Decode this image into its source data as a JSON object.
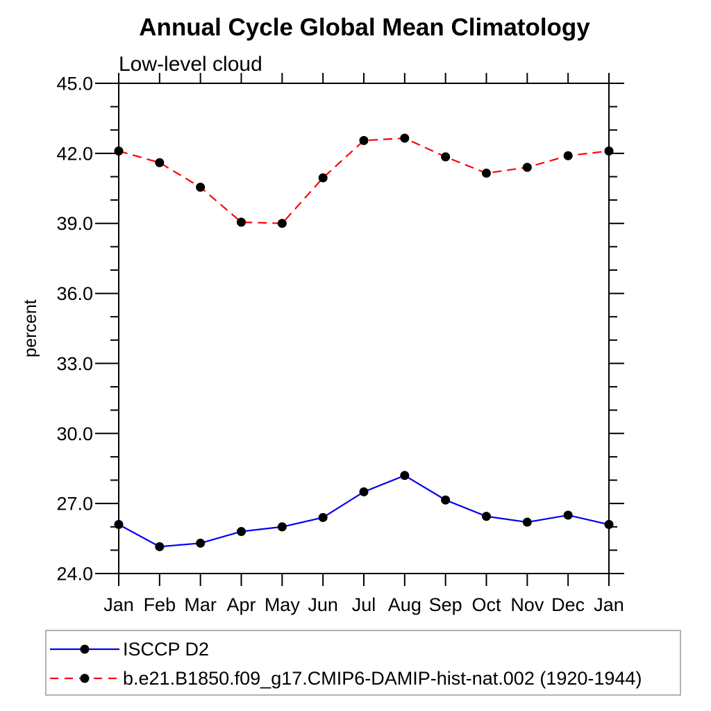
{
  "title": "Annual Cycle Global Mean Climatology",
  "subtitle": "Low-level cloud",
  "colors": {
    "series1": "#0000ee",
    "series2": "#ff0000",
    "marker": "#000000",
    "axis": "#000000",
    "legend_border": "#999999",
    "background": "#ffffff"
  },
  "chart_data": {
    "type": "line",
    "title": "Annual Cycle Global Mean Climatology",
    "subtitle": "Low-level cloud",
    "xlabel": "",
    "ylabel": "percent",
    "x_categories": [
      "Jan",
      "Feb",
      "Mar",
      "Apr",
      "May",
      "Jun",
      "Jul",
      "Aug",
      "Sep",
      "Oct",
      "Nov",
      "Dec",
      "Jan"
    ],
    "ylim": [
      24.0,
      45.0
    ],
    "y_major_ticks": [
      24.0,
      27.0,
      30.0,
      33.0,
      36.0,
      39.0,
      42.0,
      45.0
    ],
    "y_minor_step": 1.0,
    "grid": false,
    "legend_position": "bottom-left-box",
    "series": [
      {
        "name": "ISCCP D2",
        "color": "#0000ee",
        "line_style": "solid",
        "marker": "filled-circle",
        "values": [
          26.1,
          25.15,
          25.3,
          25.8,
          26.0,
          26.4,
          27.5,
          28.2,
          27.15,
          26.45,
          26.2,
          26.5,
          26.1
        ]
      },
      {
        "name": "b.e21.B1850.f09_g17.CMIP6-DAMIP-hist-nat.002 (1920-1944)",
        "color": "#ff0000",
        "line_style": "dashed",
        "marker": "filled-circle",
        "values": [
          42.1,
          41.6,
          40.55,
          39.05,
          39.0,
          40.95,
          42.55,
          42.65,
          41.85,
          41.15,
          41.4,
          41.9,
          42.1
        ]
      }
    ]
  }
}
